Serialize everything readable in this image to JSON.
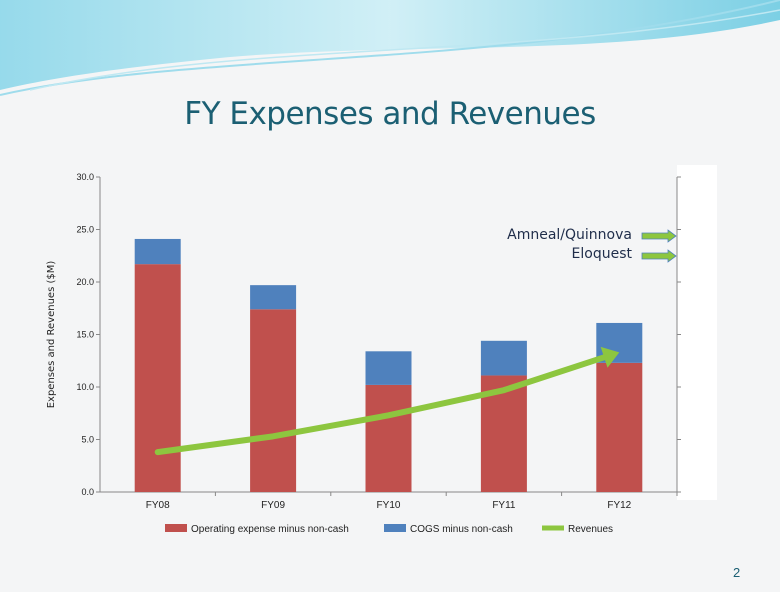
{
  "slide": {
    "title": "FY Expenses and Revenues",
    "page_number": "2",
    "annotations": [
      "Amneal/Quinnova",
      "Eloquest"
    ]
  },
  "colors": {
    "operating": "#c0504d",
    "cogs": "#4f81bd",
    "revenues": "#8dc63f",
    "title": "#1b5f73"
  },
  "chart_data": {
    "type": "bar",
    "stacked": true,
    "title": "",
    "xlabel": "",
    "ylabel": "Expenses and Revenues ($M)",
    "ylim": [
      0,
      30
    ],
    "yticks": [
      "0.0",
      "5.0",
      "10.0",
      "15.0",
      "20.0",
      "25.0",
      "30.0"
    ],
    "categories": [
      "FY08",
      "FY09",
      "FY10",
      "FY11",
      "FY12"
    ],
    "series": [
      {
        "name": "Operating expense minus non-cash",
        "type": "bar",
        "values": [
          21.7,
          17.4,
          10.2,
          11.1,
          12.3
        ]
      },
      {
        "name": "COGS minus non-cash",
        "type": "bar",
        "values": [
          2.4,
          2.3,
          3.2,
          3.3,
          3.8
        ]
      },
      {
        "name": "Revenues",
        "type": "line",
        "values": [
          3.8,
          5.3,
          7.3,
          9.7,
          13.3
        ]
      }
    ],
    "legend": "bottom",
    "grid": false
  }
}
